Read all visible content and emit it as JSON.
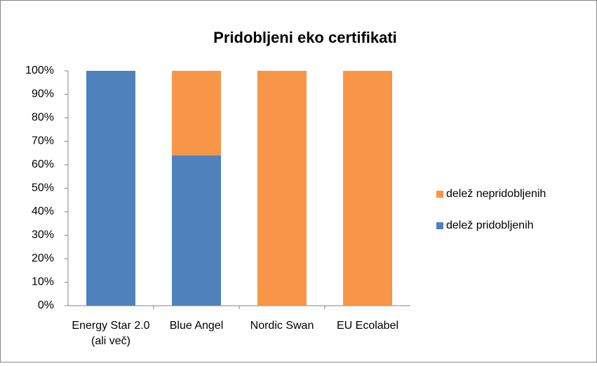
{
  "chart_data": {
    "type": "stacked_bar",
    "title": "Pridobljeni eko certifikati",
    "categories": [
      "Energy Star 2.0 (ali več)",
      "Blue Angel",
      "Nordic Swan",
      "EU Ecolabel"
    ],
    "series": [
      {
        "name": "delež pridobljenih",
        "color": "#4f81bd",
        "values": [
          100,
          64,
          0,
          0
        ]
      },
      {
        "name": "delež nepridobljenih",
        "color": "#f79646",
        "values": [
          0,
          36,
          100,
          100
        ]
      }
    ],
    "ylim": [
      0,
      100
    ],
    "yticks": [
      {
        "value": 0,
        "label": "0%"
      },
      {
        "value": 10,
        "label": "10%"
      },
      {
        "value": 20,
        "label": "20%"
      },
      {
        "value": 30,
        "label": "30%"
      },
      {
        "value": 40,
        "label": "40%"
      },
      {
        "value": 50,
        "label": "50%"
      },
      {
        "value": 60,
        "label": "60%"
      },
      {
        "value": 70,
        "label": "70%"
      },
      {
        "value": 80,
        "label": "80%"
      },
      {
        "value": 90,
        "label": "90%"
      },
      {
        "value": 100,
        "label": "100%"
      }
    ],
    "grid": false,
    "legend": "right"
  }
}
